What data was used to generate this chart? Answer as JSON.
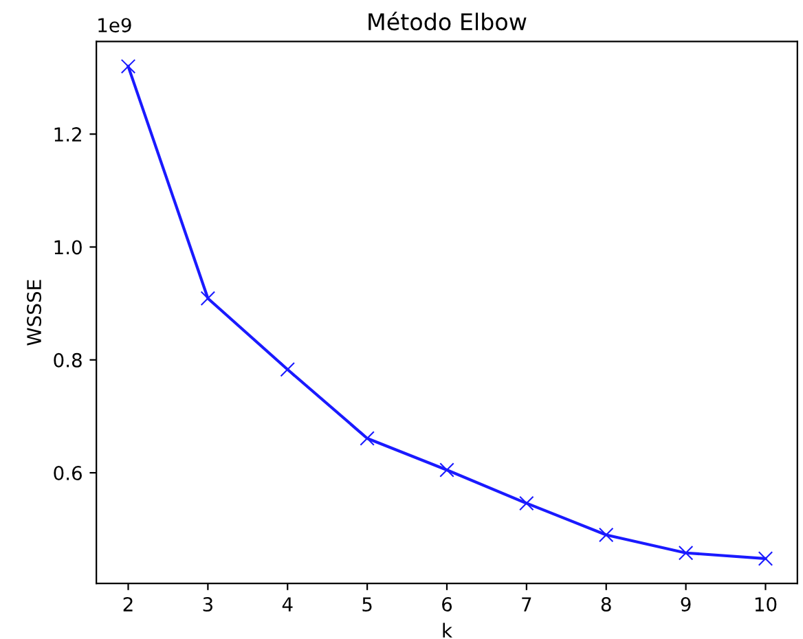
{
  "chart_data": {
    "type": "line",
    "title": "Método Elbow",
    "xlabel": "k",
    "ylabel": "WSSSE",
    "x": [
      2,
      3,
      4,
      5,
      6,
      7,
      8,
      9,
      10
    ],
    "series": [
      {
        "color": "#1a1aff",
        "values": [
          1.32,
          0.909,
          0.783,
          0.661,
          0.605,
          0.546,
          0.49,
          0.458,
          0.448
        ]
      }
    ],
    "xlim": [
      1.6,
      10.4
    ],
    "xticks": [
      2,
      3,
      4,
      5,
      6,
      7,
      8,
      9,
      10
    ],
    "ylim": [
      0.404,
      1.364
    ],
    "yticks": [
      {
        "value": 0.6,
        "label": "0.6"
      },
      {
        "value": 0.8,
        "label": "0.8"
      },
      {
        "value": 1.0,
        "label": "1.0"
      },
      {
        "value": 1.2,
        "label": "1.2"
      }
    ],
    "annotations": [
      "1e9"
    ],
    "marker": "cross",
    "line_style": "solid",
    "grid": false,
    "legend": false
  }
}
